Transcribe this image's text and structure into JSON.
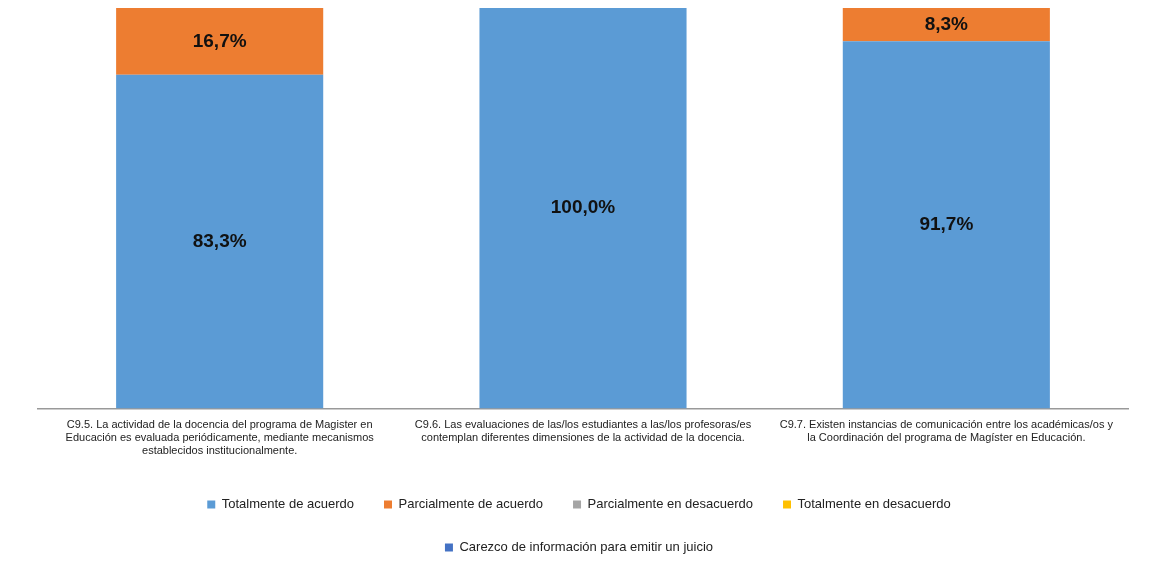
{
  "chart_data": {
    "type": "bar",
    "stacked": true,
    "categories": [
      "C9.5. La actividad de la docencia del programa de Magister en Educación es evaluada periódicamente, mediante mecanismos establecidos institucionalmente.",
      "C9.6. Las evaluaciones de las/los estudiantes a las/los profesoras/es contemplan diferentes dimensiones de la actividad de la docencia.",
      "C9.7. Existen instancias de comunicación entre los académicas/os y la Coordinación del programa de Magíster en Educación."
    ],
    "series": [
      {
        "name": "Totalmente de acuerdo",
        "color": "#5b9bd5",
        "values": [
          83.3,
          100,
          91.7
        ],
        "value_labels": [
          "83,3%",
          "100,0%",
          "91,7%"
        ]
      },
      {
        "name": "Parcialmente de acuerdo",
        "color": "#ed7d31",
        "values": [
          16.7,
          0,
          8.3
        ],
        "value_labels": [
          "16,7%",
          null,
          "8,3%"
        ]
      },
      {
        "name": "Parcialmente en desacuerdo",
        "color": "#a5a5a5",
        "values": [
          0,
          0,
          0
        ]
      },
      {
        "name": "Totalmente en desacuerdo",
        "color": "#ffc000",
        "values": [
          0,
          0,
          0
        ]
      },
      {
        "name": "Carezco de información para emitir un juicio",
        "color": "#4472c4",
        "values": [
          0,
          0,
          0
        ]
      }
    ],
    "ylim": [
      0,
      100
    ],
    "tick_labels": "x",
    "grid": false,
    "legend": "bottom"
  }
}
